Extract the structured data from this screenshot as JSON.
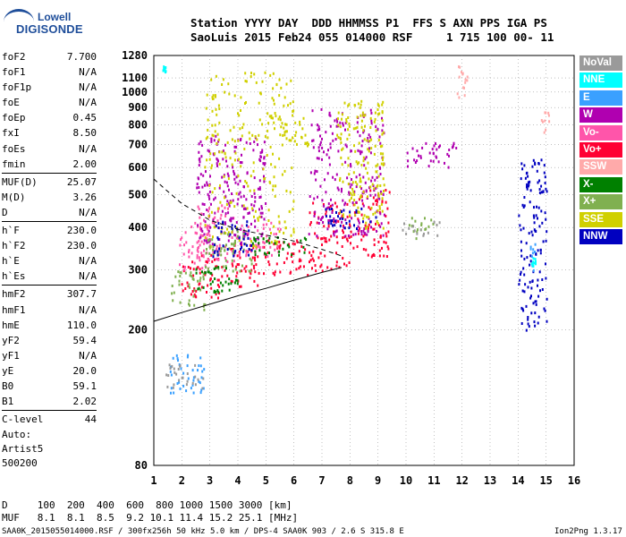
{
  "logo": {
    "line1": "Lowell",
    "line2": "DIGISONDE"
  },
  "header": {
    "line1": "Station YYYY DAY  DDD HHMMSS P1  FFS S AXN PPS IGA PS",
    "line2": "SaoLuis 2015 Feb24 055 014000 RSF     1 715 100 00- 11"
  },
  "params": [
    {
      "label": "foF2",
      "value": "7.700"
    },
    {
      "label": "foF1",
      "value": "N/A"
    },
    {
      "label": "foF1p",
      "value": "N/A"
    },
    {
      "label": "foE",
      "value": "N/A"
    },
    {
      "label": "foEp",
      "value": "0.45"
    },
    {
      "label": "fxI",
      "value": "8.50"
    },
    {
      "label": "foEs",
      "value": "N/A"
    },
    {
      "label": "fmin",
      "value": "2.00"
    },
    {
      "label": "MUF(D)",
      "value": "25.07"
    },
    {
      "label": "M(D)",
      "value": "3.26"
    },
    {
      "label": "D",
      "value": "N/A"
    },
    {
      "label": "h`F",
      "value": "230.0"
    },
    {
      "label": "h`F2",
      "value": "230.0"
    },
    {
      "label": "h`E",
      "value": "N/A"
    },
    {
      "label": "h`Es",
      "value": "N/A"
    },
    {
      "label": "hmF2",
      "value": "307.7"
    },
    {
      "label": "hmF1",
      "value": "N/A"
    },
    {
      "label": "hmE",
      "value": "110.0"
    },
    {
      "label": "yF2",
      "value": "59.4"
    },
    {
      "label": "yF1",
      "value": "N/A"
    },
    {
      "label": "yE",
      "value": "20.0"
    },
    {
      "label": "B0",
      "value": "59.1"
    },
    {
      "label": "B1",
      "value": "2.02"
    },
    {
      "label": "C-level",
      "value": "44"
    }
  ],
  "auto": {
    "line1": "Auto:",
    "line2": "Artist5",
    "line3": "500200"
  },
  "legend": [
    {
      "label": "NoVal",
      "color": "#9a9a9a"
    },
    {
      "label": "NNE",
      "color": "#00ffff"
    },
    {
      "label": "E",
      "color": "#3aa0ff"
    },
    {
      "label": "W",
      "color": "#b000b0"
    },
    {
      "label": "Vo-",
      "color": "#ff55aa"
    },
    {
      "label": "Vo+",
      "color": "#ff0033"
    },
    {
      "label": "SSW",
      "color": "#ffaaaa"
    },
    {
      "label": "X-",
      "color": "#008000"
    },
    {
      "label": "X+",
      "color": "#80b050"
    },
    {
      "label": "SSE",
      "color": "#d0d000"
    },
    {
      "label": "NNW",
      "color": "#0000c0"
    }
  ],
  "muf_table": {
    "row1": "D     100  200  400  600  800 1000 1500 3000 [km]",
    "row2": "MUF   8.1  8.1  8.5  9.2 10.1 11.4 15.2 25.1 [MHz]"
  },
  "footer": {
    "left": "SAA0K_2015055014000.RSF / 300fx256h 50 kHz 5.0 km / DPS-4 SAA0K 903 / 2.6 S 315.8 E",
    "right": "Ion2Png 1.3.17"
  },
  "chart_data": {
    "type": "scatter",
    "title": "",
    "xlabel": "",
    "ylabel": "",
    "xlim": [
      1,
      16
    ],
    "ylim": [
      80,
      1280
    ],
    "yscale": "log",
    "x_ticks": [
      1,
      2,
      3,
      4,
      5,
      6,
      7,
      8,
      9,
      10,
      11,
      12,
      13,
      14,
      15,
      16
    ],
    "y_ticks": [
      80,
      200,
      300,
      400,
      500,
      600,
      700,
      800,
      900,
      1000,
      1100,
      1280
    ],
    "grid": true,
    "series": [
      {
        "name": "Vo+",
        "color": "#ff0033",
        "clusters": [
          [
            1.9,
            2.6,
            240,
            320
          ],
          [
            2.6,
            3.6,
            250,
            340
          ],
          [
            3.6,
            5.0,
            270,
            360
          ],
          [
            5.0,
            6.5,
            290,
            370
          ],
          [
            6.5,
            8.0,
            300,
            480
          ],
          [
            8.0,
            9.4,
            330,
            520
          ]
        ]
      },
      {
        "name": "Vo-",
        "color": "#ff55aa",
        "clusters": [
          [
            1.8,
            3.0,
            300,
            420
          ],
          [
            2.5,
            4.0,
            320,
            480
          ],
          [
            4.0,
            5.5,
            330,
            420
          ]
        ]
      },
      {
        "name": "W",
        "color": "#b000b0",
        "clusters": [
          [
            2.5,
            5.0,
            360,
            750
          ],
          [
            6.5,
            9.2,
            380,
            900
          ],
          [
            10.0,
            11.8,
            600,
            720
          ]
        ]
      },
      {
        "name": "SSE",
        "color": "#d0d000",
        "clusters": [
          [
            2.8,
            6.0,
            350,
            1150
          ],
          [
            7.5,
            9.2,
            400,
            950
          ],
          [
            5.0,
            6.5,
            700,
            860
          ]
        ]
      },
      {
        "name": "X+",
        "color": "#80b050",
        "clusters": [
          [
            1.6,
            2.8,
            230,
            300
          ],
          [
            2.8,
            4.5,
            300,
            400
          ],
          [
            10.0,
            11.0,
            370,
            430
          ]
        ]
      },
      {
        "name": "X-",
        "color": "#008000",
        "clusters": [
          [
            2.2,
            4.0,
            260,
            310
          ],
          [
            4.5,
            6.5,
            330,
            380
          ]
        ]
      },
      {
        "name": "NNW",
        "color": "#0000c0",
        "clusters": [
          [
            3.0,
            4.5,
            330,
            420
          ],
          [
            7.0,
            9.0,
            400,
            460
          ],
          [
            14.0,
            15.0,
            200,
            640
          ]
        ]
      },
      {
        "name": "E",
        "color": "#3aa0ff",
        "clusters": [
          [
            1.5,
            2.8,
            130,
            170
          ],
          [
            14.4,
            14.6,
            300,
            360
          ]
        ]
      },
      {
        "name": "NNE",
        "color": "#00ffff",
        "clusters": [
          [
            1.3,
            1.4,
            1150,
            1200
          ],
          [
            14.4,
            14.6,
            310,
            330
          ]
        ]
      },
      {
        "name": "SSW",
        "color": "#ffaaaa",
        "clusters": [
          [
            11.8,
            12.2,
            900,
            1250
          ],
          [
            14.8,
            15.1,
            750,
            880
          ]
        ]
      },
      {
        "name": "NoVal",
        "color": "#9a9a9a",
        "clusters": [
          [
            1.4,
            2.8,
            135,
            160
          ],
          [
            9.8,
            11.2,
            380,
            420
          ]
        ]
      }
    ],
    "traces": [
      {
        "name": "virtual-height-trace",
        "style": "solid",
        "x": [
          1.0,
          2.0,
          3.0,
          4.0,
          5.0,
          6.0,
          7.0,
          7.7
        ],
        "y": [
          212,
          225,
          238,
          252,
          265,
          280,
          295,
          305
        ]
      },
      {
        "name": "profile-trace",
        "style": "dashed",
        "x": [
          1.0,
          1.5,
          2.0,
          2.5,
          3.0,
          4.0,
          5.0,
          6.0,
          7.0,
          7.7
        ],
        "y": [
          555,
          510,
          470,
          445,
          420,
          395,
          380,
          365,
          345,
          330
        ]
      }
    ]
  }
}
